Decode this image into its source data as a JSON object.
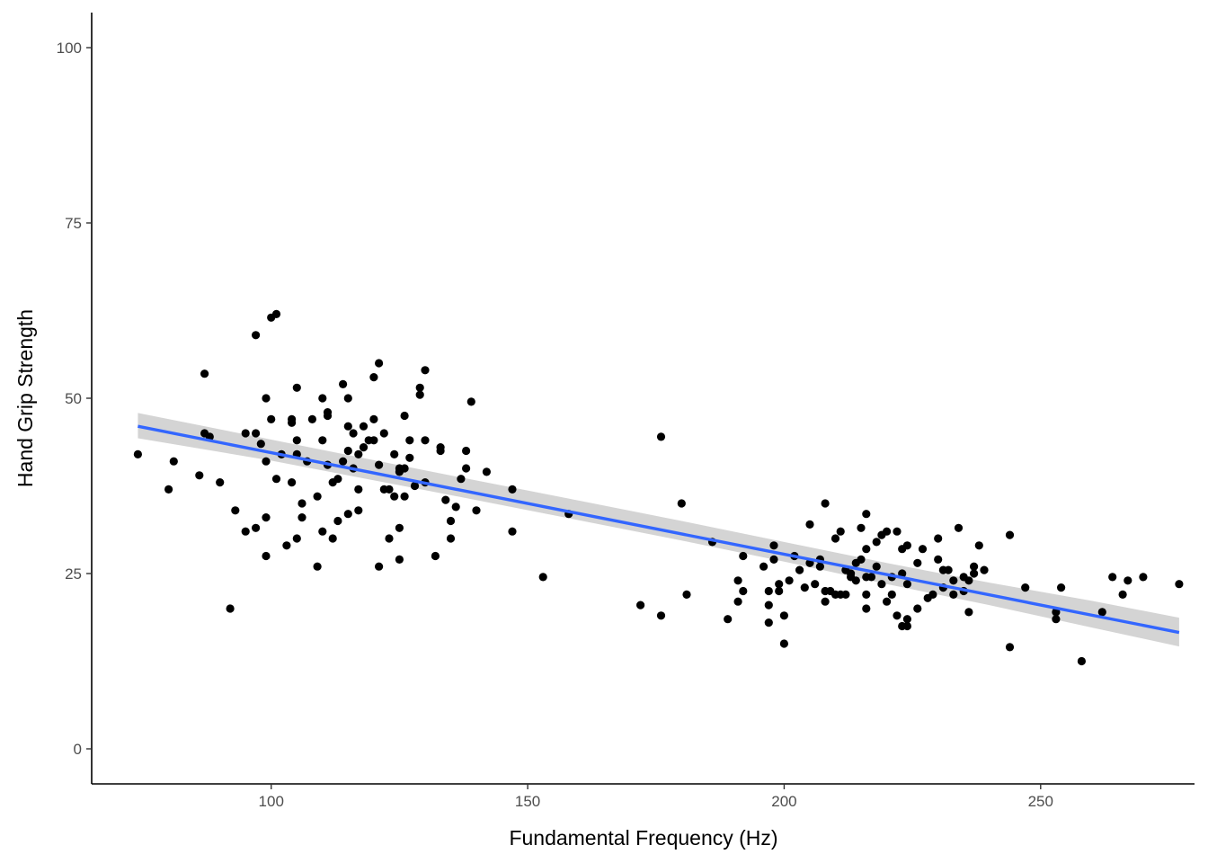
{
  "chart_data": {
    "type": "scatter",
    "xlabel": "Fundamental Frequency (Hz)",
    "ylabel": "Hand Grip Strength",
    "xlim": [
      65,
      280
    ],
    "ylim": [
      -5,
      105
    ],
    "xticks": [
      100,
      150,
      200,
      250
    ],
    "yticks": [
      0,
      25,
      50,
      75,
      100
    ],
    "grid": false,
    "colors": {
      "points": "#000000",
      "fit_line": "#3366ff",
      "ribbon": "#cccccc"
    },
    "points": [
      [
        74,
        42
      ],
      [
        80,
        37
      ],
      [
        81,
        41
      ],
      [
        86,
        39
      ],
      [
        87,
        53.5
      ],
      [
        87,
        45
      ],
      [
        88,
        44.5
      ],
      [
        90,
        38
      ],
      [
        92,
        20
      ],
      [
        93,
        34
      ],
      [
        95,
        31
      ],
      [
        95,
        45
      ],
      [
        97,
        31.5
      ],
      [
        97,
        45
      ],
      [
        97,
        59
      ],
      [
        98,
        43.5
      ],
      [
        99,
        41
      ],
      [
        99,
        50
      ],
      [
        99,
        27.5
      ],
      [
        99,
        33
      ],
      [
        100,
        47
      ],
      [
        100,
        61.5
      ],
      [
        101,
        62
      ],
      [
        101,
        38.5
      ],
      [
        102,
        42
      ],
      [
        103,
        29
      ],
      [
        104,
        38
      ],
      [
        104,
        46.5
      ],
      [
        104,
        47
      ],
      [
        105,
        51.5
      ],
      [
        105,
        44
      ],
      [
        105,
        42
      ],
      [
        105,
        30
      ],
      [
        106,
        35
      ],
      [
        106,
        33
      ],
      [
        107,
        41
      ],
      [
        108,
        47
      ],
      [
        109,
        26
      ],
      [
        109,
        36
      ],
      [
        110,
        31
      ],
      [
        110,
        50
      ],
      [
        110,
        44
      ],
      [
        111,
        40.5
      ],
      [
        111,
        47.5
      ],
      [
        111,
        48
      ],
      [
        112,
        38
      ],
      [
        112,
        30
      ],
      [
        113,
        38.5
      ],
      [
        113,
        32.5
      ],
      [
        114,
        52
      ],
      [
        114,
        41
      ],
      [
        115,
        46
      ],
      [
        115,
        50
      ],
      [
        115,
        42.5
      ],
      [
        115,
        33.5
      ],
      [
        116,
        40
      ],
      [
        116,
        45
      ],
      [
        117,
        42
      ],
      [
        117,
        34
      ],
      [
        117,
        37
      ],
      [
        118,
        46
      ],
      [
        118,
        43
      ],
      [
        119,
        44
      ],
      [
        120,
        47
      ],
      [
        120,
        44
      ],
      [
        120,
        53
      ],
      [
        121,
        55
      ],
      [
        121,
        40.5
      ],
      [
        121,
        26
      ],
      [
        122,
        37
      ],
      [
        122,
        45
      ],
      [
        123,
        37
      ],
      [
        123,
        30
      ],
      [
        124,
        42
      ],
      [
        124,
        36
      ],
      [
        125,
        39.5
      ],
      [
        125,
        40
      ],
      [
        125,
        27
      ],
      [
        125,
        31.5
      ],
      [
        126,
        36
      ],
      [
        126,
        47.5
      ],
      [
        126,
        40
      ],
      [
        127,
        44
      ],
      [
        127,
        41.5
      ],
      [
        128,
        37.5
      ],
      [
        129,
        50.5
      ],
      [
        129,
        51.5
      ],
      [
        130,
        54
      ],
      [
        130,
        38
      ],
      [
        130,
        44
      ],
      [
        132,
        27.5
      ],
      [
        133,
        42.5
      ],
      [
        133,
        43
      ],
      [
        134,
        35.5
      ],
      [
        135,
        30
      ],
      [
        135,
        32.5
      ],
      [
        136,
        34.5
      ],
      [
        137,
        38.5
      ],
      [
        138,
        42.5
      ],
      [
        138,
        40
      ],
      [
        139,
        49.5
      ],
      [
        140,
        34
      ],
      [
        142,
        39.5
      ],
      [
        147,
        37
      ],
      [
        147,
        31
      ],
      [
        153,
        24.5
      ],
      [
        158,
        33.5
      ],
      [
        172,
        20.5
      ],
      [
        176,
        19
      ],
      [
        176,
        44.5
      ],
      [
        180,
        35
      ],
      [
        181,
        22
      ],
      [
        186,
        29.5
      ],
      [
        189,
        18.5
      ],
      [
        191,
        24
      ],
      [
        191,
        21
      ],
      [
        192,
        27.5
      ],
      [
        192,
        22.5
      ],
      [
        196,
        26
      ],
      [
        197,
        20.5
      ],
      [
        197,
        18
      ],
      [
        197,
        22.5
      ],
      [
        198,
        27
      ],
      [
        198,
        29
      ],
      [
        199,
        23.5
      ],
      [
        199,
        22.5
      ],
      [
        200,
        19
      ],
      [
        200,
        15
      ],
      [
        201,
        24
      ],
      [
        202,
        27.5
      ],
      [
        203,
        25.5
      ],
      [
        204,
        23
      ],
      [
        205,
        32
      ],
      [
        205,
        26.5
      ],
      [
        206,
        23.5
      ],
      [
        207,
        27
      ],
      [
        207,
        26
      ],
      [
        208,
        35
      ],
      [
        208,
        22.5
      ],
      [
        208,
        21
      ],
      [
        209,
        22.5
      ],
      [
        210,
        22
      ],
      [
        210,
        30
      ],
      [
        211,
        31
      ],
      [
        211,
        22
      ],
      [
        212,
        25.5
      ],
      [
        212,
        22
      ],
      [
        213,
        25
      ],
      [
        213,
        24.5
      ],
      [
        214,
        26.5
      ],
      [
        214,
        24
      ],
      [
        215,
        31.5
      ],
      [
        215,
        27
      ],
      [
        216,
        28.5
      ],
      [
        216,
        33.5
      ],
      [
        216,
        24.5
      ],
      [
        216,
        22
      ],
      [
        216,
        20
      ],
      [
        217,
        24.5
      ],
      [
        218,
        29.5
      ],
      [
        218,
        26
      ],
      [
        219,
        30.5
      ],
      [
        219,
        23.5
      ],
      [
        220,
        31
      ],
      [
        220,
        21
      ],
      [
        221,
        24.5
      ],
      [
        221,
        22
      ],
      [
        222,
        31
      ],
      [
        222,
        19
      ],
      [
        223,
        28.5
      ],
      [
        223,
        25
      ],
      [
        223,
        17.5
      ],
      [
        224,
        29
      ],
      [
        224,
        23.5
      ],
      [
        224,
        17.5
      ],
      [
        224,
        18.5
      ],
      [
        226,
        26.5
      ],
      [
        226,
        20
      ],
      [
        227,
        28.5
      ],
      [
        228,
        21.5
      ],
      [
        229,
        22
      ],
      [
        230,
        30
      ],
      [
        230,
        27
      ],
      [
        231,
        25.5
      ],
      [
        231,
        23
      ],
      [
        232,
        25.5
      ],
      [
        233,
        24
      ],
      [
        233,
        22
      ],
      [
        234,
        31.5
      ],
      [
        235,
        24.5
      ],
      [
        235,
        22.5
      ],
      [
        236,
        24
      ],
      [
        236,
        19.5
      ],
      [
        237,
        25
      ],
      [
        237,
        26
      ],
      [
        238,
        29
      ],
      [
        239,
        25.5
      ],
      [
        244,
        30.5
      ],
      [
        244,
        14.5
      ],
      [
        247,
        23
      ],
      [
        253,
        19.5
      ],
      [
        253,
        18.5
      ],
      [
        254,
        23
      ],
      [
        258,
        12.5
      ],
      [
        262,
        19.5
      ],
      [
        264,
        24.5
      ],
      [
        266,
        22
      ],
      [
        267,
        24
      ],
      [
        270,
        24.5
      ],
      [
        277,
        23.5
      ]
    ],
    "fit_line": {
      "x": [
        74,
        277
      ],
      "y": [
        46,
        16.6
      ]
    },
    "ribbon": {
      "x": [
        74,
        100,
        130,
        160,
        180,
        200,
        220,
        240,
        260,
        277
      ],
      "lower": [
        44.3,
        41.1,
        36.9,
        32.6,
        29.7,
        26.7,
        23.5,
        20.5,
        17.3,
        14.6
      ],
      "upper": [
        47.9,
        44.1,
        39.7,
        35.4,
        32.5,
        29.5,
        26.5,
        23.7,
        21.1,
        18.7
      ]
    }
  }
}
